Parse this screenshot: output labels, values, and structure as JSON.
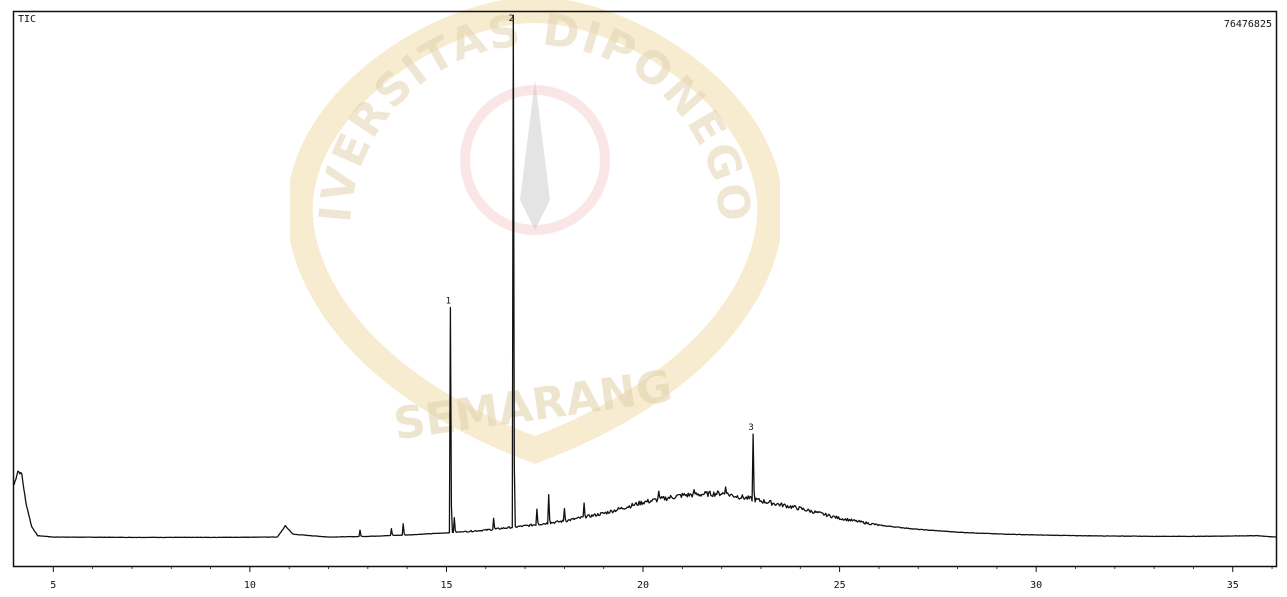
{
  "chart_data": {
    "type": "line",
    "title": "TIC",
    "max_abundance_label": "76476825",
    "xlabel": "",
    "ylabel": "",
    "xlim": [
      4.0,
      36.1
    ],
    "ylim": [
      0,
      76476825
    ],
    "x_ticks": [
      5,
      10,
      15,
      20,
      25,
      30,
      35
    ],
    "x_tick_labels": [
      "5",
      "10",
      "15",
      "20",
      "25",
      "30",
      "35"
    ],
    "grid": false,
    "baseline": [
      [
        4.0,
        8500000
      ],
      [
        4.1,
        10500000
      ],
      [
        4.2,
        10000000
      ],
      [
        4.3,
        6000000
      ],
      [
        4.45,
        2500000
      ],
      [
        4.6,
        1200000
      ],
      [
        5,
        1000000
      ],
      [
        7,
        950000
      ],
      [
        9,
        950000
      ],
      [
        10.7,
        1000000
      ],
      [
        10.9,
        2600000
      ],
      [
        11.1,
        1400000
      ],
      [
        12,
        1000000
      ],
      [
        13,
        1100000
      ],
      [
        14,
        1300000
      ],
      [
        15,
        1600000
      ],
      [
        16,
        2000000
      ],
      [
        17,
        2600000
      ],
      [
        18,
        3300000
      ],
      [
        19,
        4400000
      ],
      [
        20,
        6000000
      ],
      [
        21,
        7000000
      ],
      [
        22,
        7300000
      ],
      [
        23,
        6200000
      ],
      [
        24,
        5100000
      ],
      [
        25,
        3700000
      ],
      [
        26,
        2700000
      ],
      [
        27,
        2100000
      ],
      [
        28,
        1700000
      ],
      [
        29,
        1450000
      ],
      [
        30,
        1300000
      ],
      [
        31,
        1200000
      ],
      [
        32,
        1150000
      ],
      [
        33,
        1100000
      ],
      [
        34,
        1100000
      ],
      [
        35,
        1150000
      ],
      [
        35.6,
        1200000
      ],
      [
        36.1,
        1000000
      ]
    ],
    "peaks": [
      {
        "x": 12.8,
        "y": 2000000
      },
      {
        "x": 13.6,
        "y": 2200000
      },
      {
        "x": 13.9,
        "y": 2900000
      },
      {
        "x": 15.2,
        "y": 3800000
      },
      {
        "x": 16.2,
        "y": 3700000
      },
      {
        "x": 17.3,
        "y": 5000000
      },
      {
        "x": 17.6,
        "y": 7100000
      },
      {
        "x": 18.0,
        "y": 5100000
      },
      {
        "x": 18.5,
        "y": 5900000
      },
      {
        "x": 20.4,
        "y": 7600000
      },
      {
        "x": 21.3,
        "y": 7800000
      },
      {
        "x": 22.1,
        "y": 8200000
      }
    ],
    "labeled_peaks": [
      {
        "label": "1",
        "x": 15.1,
        "y": 34000000
      },
      {
        "label": "2",
        "x": 16.7,
        "y": 76000000
      },
      {
        "label": "3",
        "x": 22.8,
        "y": 15800000
      }
    ]
  },
  "watermark": {
    "top_arc": "UNIVERSITAS DIPONEGORO",
    "bottom": "SEMARANG"
  }
}
